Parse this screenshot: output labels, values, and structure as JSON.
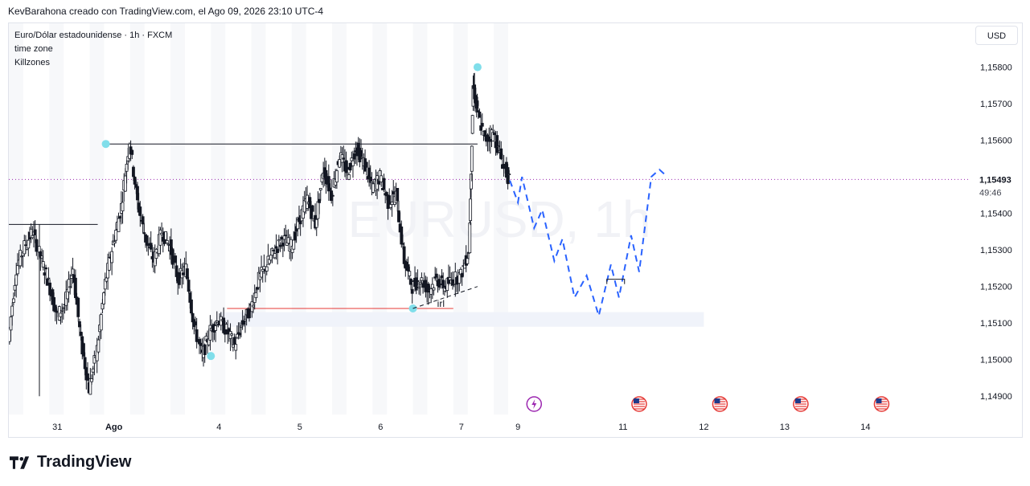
{
  "header": {
    "caption": "KevBarahona creado con TradingView.com, el Ago 09, 2026 23:10 UTC-4"
  },
  "legend": {
    "symbol": "Euro/Dólar estadounidense · 1h · FXCM",
    "indicator_1": "time zone",
    "indicator_2": "Killzones"
  },
  "currency_button": "USD",
  "watermark": "EURUSD, 1h",
  "footer": {
    "logo_text": "TradingView"
  },
  "chart_data": {
    "type": "candlestick",
    "symbol": "EURUSD",
    "timeframe": "1h",
    "y_axis": {
      "ticks": [
        {
          "value": 1.158,
          "label": "1,15800"
        },
        {
          "value": 1.157,
          "label": "1,15700"
        },
        {
          "value": 1.156,
          "label": "1,15600"
        },
        {
          "value": 1.154,
          "label": "1,15400"
        },
        {
          "value": 1.153,
          "label": "1,15300"
        },
        {
          "value": 1.152,
          "label": "1,15200"
        },
        {
          "value": 1.151,
          "label": "1,15100"
        },
        {
          "value": 1.15,
          "label": "1,15000"
        },
        {
          "value": 1.149,
          "label": "1,14900"
        }
      ],
      "range": [
        1.1485,
        1.1592
      ]
    },
    "x_axis": {
      "ticks": [
        {
          "label": "31",
          "day": 0.6
        },
        {
          "label": "Ago",
          "day": 1.3
        },
        {
          "label": "4",
          "day": 2.6
        },
        {
          "label": "5",
          "day": 3.6
        },
        {
          "label": "6",
          "day": 4.6
        },
        {
          "label": "7",
          "day": 5.6
        },
        {
          "label": "9",
          "day": 6.3
        },
        {
          "label": "11",
          "day": 7.6
        },
        {
          "label": "12",
          "day": 8.6
        },
        {
          "label": "13",
          "day": 9.6
        },
        {
          "label": "14",
          "day": 10.6
        }
      ],
      "range": [
        0,
        11.9
      ]
    },
    "last_price": {
      "value": 1.15493,
      "label": "1,15493",
      "countdown": "49:46",
      "color": "#9c27b0"
    },
    "price_path": [
      [
        0.0,
        1.1505
      ],
      [
        0.1,
        1.1525
      ],
      [
        0.2,
        1.1531
      ],
      [
        0.3,
        1.1535
      ],
      [
        0.4,
        1.1528
      ],
      [
        0.5,
        1.1521
      ],
      [
        0.6,
        1.1512
      ],
      [
        0.7,
        1.1515
      ],
      [
        0.8,
        1.1525
      ],
      [
        0.9,
        1.1505
      ],
      [
        1.0,
        1.1492
      ],
      [
        1.1,
        1.1503
      ],
      [
        1.2,
        1.1521
      ],
      [
        1.3,
        1.1532
      ],
      [
        1.4,
        1.1542
      ],
      [
        1.5,
        1.156
      ],
      [
        1.6,
        1.1543
      ],
      [
        1.7,
        1.1533
      ],
      [
        1.8,
        1.1527
      ],
      [
        1.9,
        1.1535
      ],
      [
        2.0,
        1.1531
      ],
      [
        2.1,
        1.1522
      ],
      [
        2.2,
        1.1525
      ],
      [
        2.3,
        1.1509
      ],
      [
        2.4,
        1.1501
      ],
      [
        2.5,
        1.1508
      ],
      [
        2.6,
        1.1511
      ],
      [
        2.7,
        1.1508
      ],
      [
        2.8,
        1.1504
      ],
      [
        2.9,
        1.151
      ],
      [
        3.0,
        1.1514
      ],
      [
        3.1,
        1.1522
      ],
      [
        3.2,
        1.1526
      ],
      [
        3.3,
        1.153
      ],
      [
        3.4,
        1.1533
      ],
      [
        3.5,
        1.1531
      ],
      [
        3.6,
        1.1538
      ],
      [
        3.7,
        1.1544
      ],
      [
        3.8,
        1.1537
      ],
      [
        3.9,
        1.1552
      ],
      [
        4.0,
        1.1545
      ],
      [
        4.1,
        1.1556
      ],
      [
        4.2,
        1.1551
      ],
      [
        4.3,
        1.1558
      ],
      [
        4.4,
        1.1554
      ],
      [
        4.5,
        1.1547
      ],
      [
        4.6,
        1.155
      ],
      [
        4.7,
        1.1543
      ],
      [
        4.8,
        1.1545
      ],
      [
        4.9,
        1.1527
      ],
      [
        5.0,
        1.152
      ],
      [
        5.1,
        1.1522
      ],
      [
        5.2,
        1.1519
      ],
      [
        5.3,
        1.1522
      ],
      [
        5.4,
        1.152
      ],
      [
        5.5,
        1.1522
      ],
      [
        5.6,
        1.1523
      ],
      [
        5.7,
        1.153
      ],
      [
        5.75,
        1.1575
      ],
      [
        5.8,
        1.1568
      ],
      [
        5.9,
        1.156
      ],
      [
        6.0,
        1.1562
      ],
      [
        6.1,
        1.1555
      ],
      [
        6.2,
        1.1549
      ]
    ],
    "forecast_path": [
      [
        6.2,
        1.1549
      ],
      [
        6.3,
        1.1543
      ],
      [
        6.35,
        1.155
      ],
      [
        6.5,
        1.1536
      ],
      [
        6.6,
        1.1541
      ],
      [
        6.75,
        1.1527
      ],
      [
        6.85,
        1.1533
      ],
      [
        7.0,
        1.1517
      ],
      [
        7.15,
        1.1523
      ],
      [
        7.3,
        1.1512
      ],
      [
        7.45,
        1.1526
      ],
      [
        7.55,
        1.1517
      ],
      [
        7.7,
        1.1534
      ],
      [
        7.8,
        1.1524
      ],
      [
        7.95,
        1.155
      ],
      [
        8.05,
        1.1552
      ],
      [
        8.15,
        1.155
      ]
    ],
    "swing_points": [
      {
        "day": 1.2,
        "price": 1.1559
      },
      {
        "day": 2.5,
        "price": 1.1501
      },
      {
        "day": 5.0,
        "price": 1.1514
      },
      {
        "day": 5.8,
        "price": 1.158
      }
    ],
    "levels": [
      {
        "type": "resistance",
        "price": 1.1559,
        "from": 1.2,
        "to": 5.8,
        "color": "#131722"
      },
      {
        "type": "range_top",
        "price": 1.1537,
        "from": 0.0,
        "to": 1.1,
        "color": "#131722"
      },
      {
        "type": "low",
        "price": 1.1514,
        "from": 2.7,
        "to": 5.5,
        "color": "#e53935"
      }
    ],
    "zones": [
      {
        "from": 2.6,
        "to": 8.6,
        "low": 1.1509,
        "high": 1.1513,
        "color": "#f0f3fa"
      }
    ],
    "trendline": {
      "from": [
        5.0,
        1.1514
      ],
      "to": [
        5.8,
        1.152
      ],
      "label": "irl"
    },
    "target_box": {
      "day": 7.4,
      "price": 1.1522
    },
    "events": [
      {
        "day": 6.5,
        "icon": "lightning-icon"
      },
      {
        "day": 7.8,
        "icon": "us-flag-icon"
      },
      {
        "day": 8.8,
        "icon": "us-flag-icon"
      },
      {
        "day": 9.8,
        "icon": "us-flag-icon"
      },
      {
        "day": 10.8,
        "icon": "us-flag-icon"
      }
    ]
  }
}
